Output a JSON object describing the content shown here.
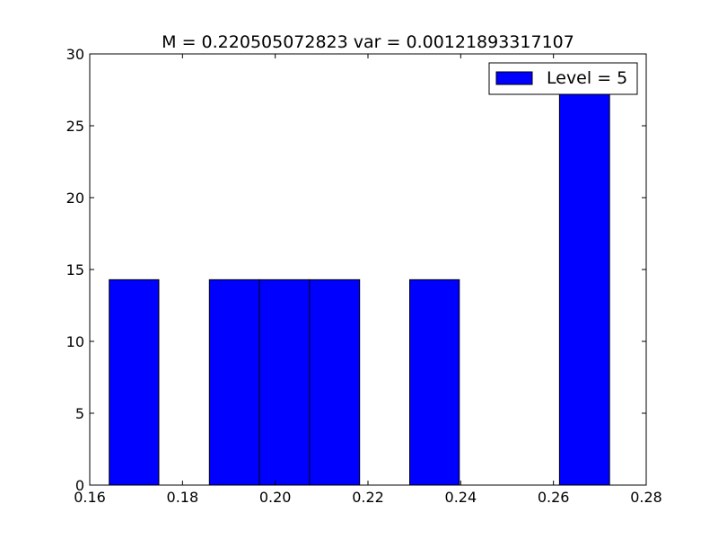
{
  "chart_data": {
    "type": "bar",
    "title": "M = 0.220505072823 var = 0.00121893317107",
    "xlabel": "",
    "ylabel": "",
    "xlim": [
      0.16,
      0.28
    ],
    "ylim": [
      0,
      30
    ],
    "x_ticks": [
      "0.16",
      "0.18",
      "0.20",
      "0.22",
      "0.24",
      "0.26",
      "0.28"
    ],
    "y_ticks": [
      "0",
      "5",
      "10",
      "15",
      "20",
      "25",
      "30"
    ],
    "grid": false,
    "legend_position": "top-right",
    "series": [
      {
        "name": "Level = 5",
        "color": "#0000ff",
        "bins": [
          {
            "x0": 0.1642,
            "x1": 0.1749,
            "value": 14.29
          },
          {
            "x0": 0.1858,
            "x1": 0.1966,
            "value": 14.29
          },
          {
            "x0": 0.1966,
            "x1": 0.2074,
            "value": 14.29
          },
          {
            "x0": 0.2074,
            "x1": 0.2182,
            "value": 14.29
          },
          {
            "x0": 0.229,
            "x1": 0.2397,
            "value": 14.29
          },
          {
            "x0": 0.2613,
            "x1": 0.2721,
            "value": 28.57
          }
        ]
      }
    ]
  }
}
